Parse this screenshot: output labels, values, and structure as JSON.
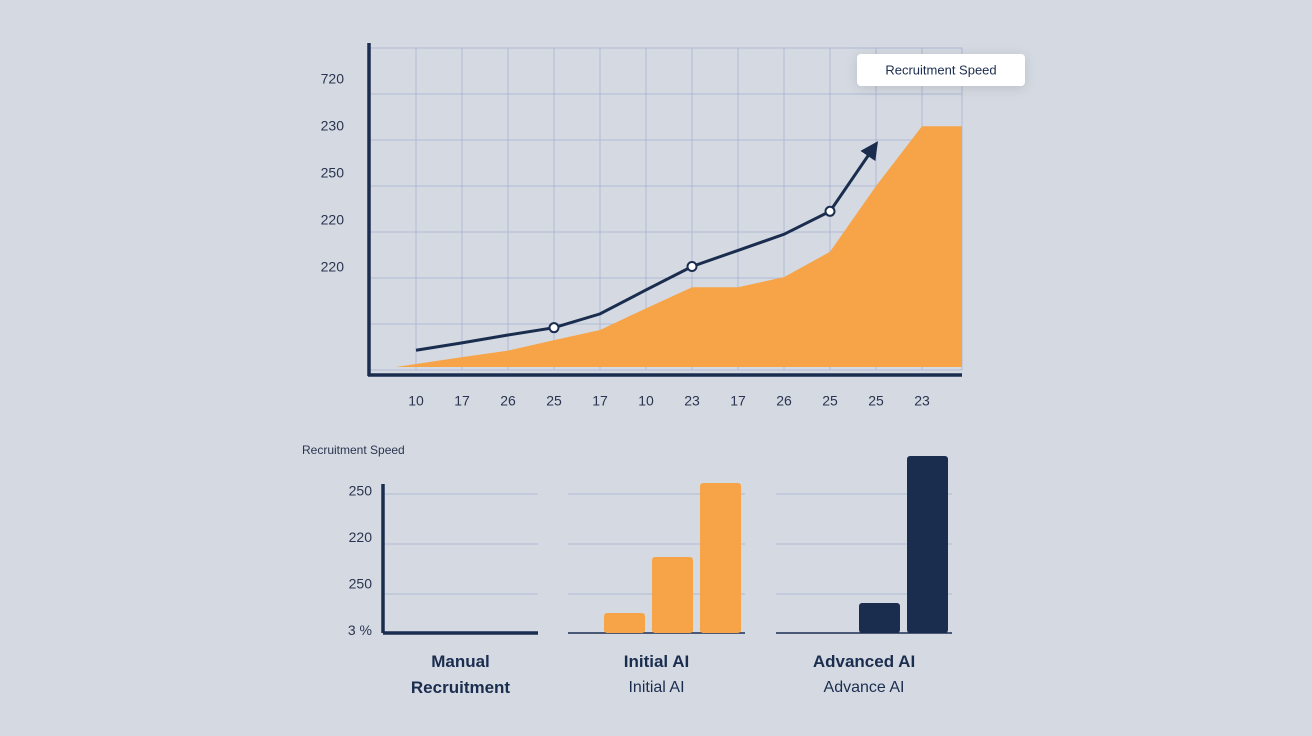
{
  "chart_data": [
    {
      "type": "line",
      "annotation": "Recruitment Speed",
      "y_axis_labels": [
        "720",
        "230",
        "250",
        "220",
        "220"
      ],
      "categories": [
        "10",
        "17",
        "26",
        "25",
        "17",
        "10",
        "23",
        "17",
        "26",
        "25",
        "25",
        "23"
      ],
      "line": {
        "color": "#1b2d4f",
        "values": [
          0.43,
          0.59,
          0.76,
          0.92,
          1.22,
          1.74,
          2.25,
          2.6,
          2.95,
          3.45,
          4.91,
          null
        ]
      },
      "area": {
        "color": "#f7a448",
        "values": [
          0.13,
          0.28,
          0.42,
          0.65,
          0.87,
          1.34,
          1.8,
          1.8,
          2.02,
          2.57,
          4.0,
          5.3
        ]
      },
      "ylim": [
        0,
        7
      ],
      "grid": true
    },
    {
      "type": "bar",
      "title": "Recruitment Speed",
      "y_axis_labels": [
        "250",
        "220",
        "250",
        "3 %"
      ],
      "groups": [
        {
          "name": "Manual Recruitment",
          "color": "#f7a448",
          "values": []
        },
        {
          "name": "Initial AI",
          "subtitle": "Initial AI",
          "color": "#f7a448",
          "values": [
            0.4,
            1.52,
            3.0
          ]
        },
        {
          "name": "Advanced AI",
          "subtitle": "Advance AI",
          "color": "#1b2d4f",
          "values": [
            0.6,
            3.54
          ]
        }
      ],
      "ylim": [
        0,
        3.6
      ],
      "grid": true
    }
  ]
}
